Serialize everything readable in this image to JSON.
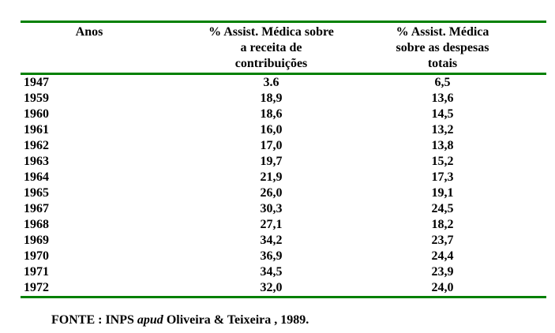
{
  "colors": {
    "rule_green": "#008000",
    "text": "#000000",
    "page_background": "#ffffff"
  },
  "table": {
    "columns": [
      {
        "key": "ano",
        "label_lines": [
          "Anos",
          "",
          ""
        ]
      },
      {
        "key": "receita",
        "label_lines": [
          "% Assist. Médica sobre",
          "a receita de",
          "contribuições"
        ]
      },
      {
        "key": "despesas",
        "label_lines": [
          "% Assist. Médica",
          "sobre as despesas",
          "totais"
        ]
      }
    ],
    "rows": [
      {
        "ano": "1947",
        "receita": "3.6",
        "despesas": "6,5"
      },
      {
        "ano": "1959",
        "receita": "18,9",
        "despesas": "13,6"
      },
      {
        "ano": "1960",
        "receita": "18,6",
        "despesas": "14,5"
      },
      {
        "ano": "1961",
        "receita": "16,0",
        "despesas": "13,2"
      },
      {
        "ano": "1962",
        "receita": "17,0",
        "despesas": "13,8"
      },
      {
        "ano": "1963",
        "receita": "19,7",
        "despesas": "15,2"
      },
      {
        "ano": "1964",
        "receita": "21,9",
        "despesas": "17,3"
      },
      {
        "ano": "1965",
        "receita": "26,0",
        "despesas": "19,1"
      },
      {
        "ano": "1967",
        "receita": "30,3",
        "despesas": "24,5"
      },
      {
        "ano": "1968",
        "receita": "27,1",
        "despesas": "18,2"
      },
      {
        "ano": "1969",
        "receita": "34,2",
        "despesas": "23,7"
      },
      {
        "ano": "1970",
        "receita": "36,9",
        "despesas": "24,4"
      },
      {
        "ano": "1971",
        "receita": "34,5",
        "despesas": "23,9"
      },
      {
        "ano": "1972",
        "receita": "32,0",
        "despesas": "24,0"
      }
    ]
  },
  "footer": {
    "prefix": "FONTE : INPS ",
    "apud": "apud",
    "suffix": " Oliveira & Teixeira , 1989."
  }
}
